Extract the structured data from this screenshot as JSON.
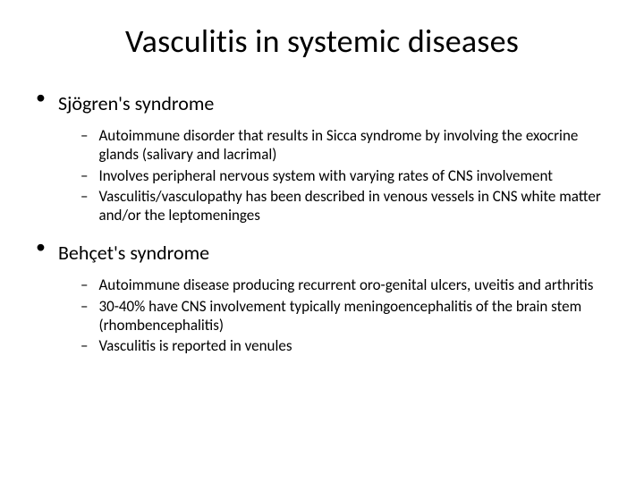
{
  "title": "Vasculitis in systemic diseases",
  "title_fontsize": 36,
  "background_color": "#ffffff",
  "text_color": "#000000",
  "sections": [
    {
      "heading": "Sjögren's syndrome",
      "items": [
        "Autoimmune disorder that results in Sicca syndrome by involving the exocrine glands (salivary and lacrimal)",
        "Involves peripheral nervous system with varying rates of CNS involvement",
        "Vasculitis/vasculopathy has been described in venous vessels in CNS white matter and/or the leptomeninges"
      ]
    },
    {
      "heading": "Behçet's syndrome",
      "items": [
        "Autoimmune disease producing recurrent oro-genital ulcers, uveitis and arthritis",
        "30-40% have CNS involvement typically meningoencephalitis of the brain stem (rhombencephalitis)",
        "Vasculitis is reported in venules"
      ]
    }
  ],
  "bullet_l1_marker": "•",
  "bullet_l2_marker": "–",
  "heading_fontsize": 22,
  "subitem_fontsize": 17
}
